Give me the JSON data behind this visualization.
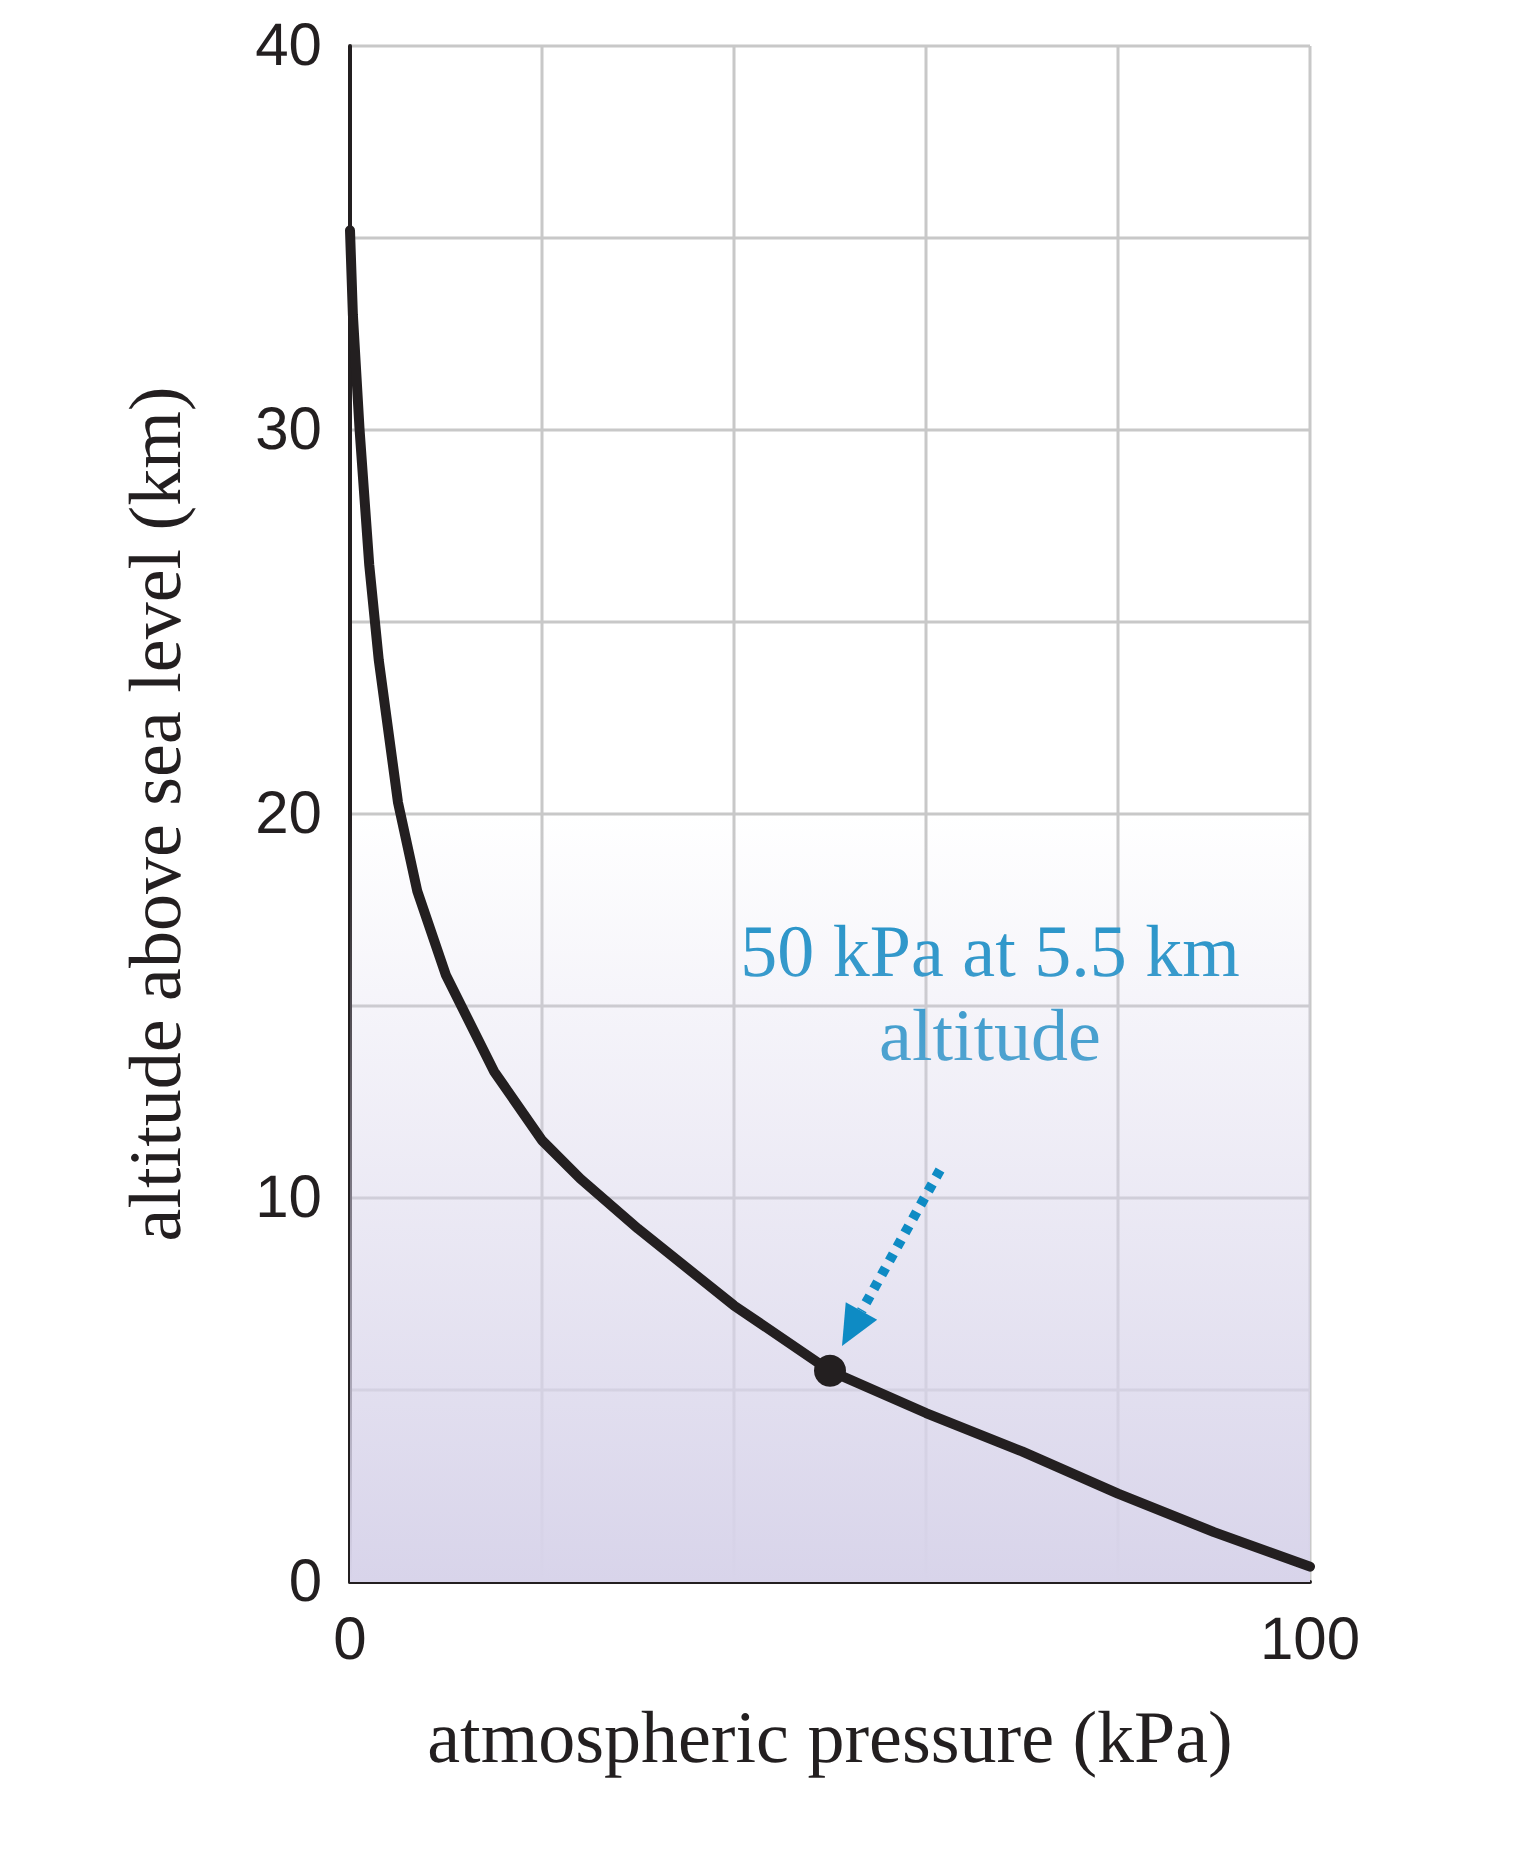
{
  "chart_data": {
    "type": "line",
    "xlabel": "atmospheric pressure (kPa)",
    "ylabel": "altitude above sea level (km)",
    "xlim": [
      0,
      100
    ],
    "ylim": [
      0,
      40
    ],
    "xticks": [
      0,
      {
        "value": 20,
        "label": null
      },
      {
        "value": 40,
        "label": null
      },
      {
        "value": 60,
        "label": null
      },
      {
        "value": 80,
        "label": null
      },
      100
    ],
    "yticks": [
      0,
      {
        "value": 5,
        "label": null
      },
      10,
      {
        "value": 15,
        "label": null
      },
      20,
      {
        "value": 25,
        "label": null
      },
      30,
      {
        "value": 35,
        "label": null
      },
      40
    ],
    "grid": true,
    "marker": "none",
    "line_style": "solid",
    "bands": [
      {
        "axis": "y",
        "from": 0,
        "to": 20,
        "color": "#d8d4ea"
      }
    ],
    "annotations": [
      "50 kPa at 5.5 km\naltitude"
    ],
    "series": [
      {
        "color": "#231f20",
        "x": [
          100,
          90,
          80,
          70,
          60,
          50,
          40,
          30,
          24,
          20,
          15,
          10,
          7,
          5,
          3,
          2,
          1,
          0.3,
          0
        ],
        "values": [
          0.4,
          1.3,
          2.3,
          3.4,
          4.4,
          5.5,
          7.2,
          9.2,
          10.5,
          11.5,
          13.3,
          15.8,
          18,
          20.3,
          24,
          26.5,
          30,
          33,
          35.2
        ]
      },
      {
        "type": "scatter",
        "color": "#231f20",
        "marker": "circle",
        "x": [
          50
        ],
        "values": [
          5.5
        ]
      }
    ]
  }
}
